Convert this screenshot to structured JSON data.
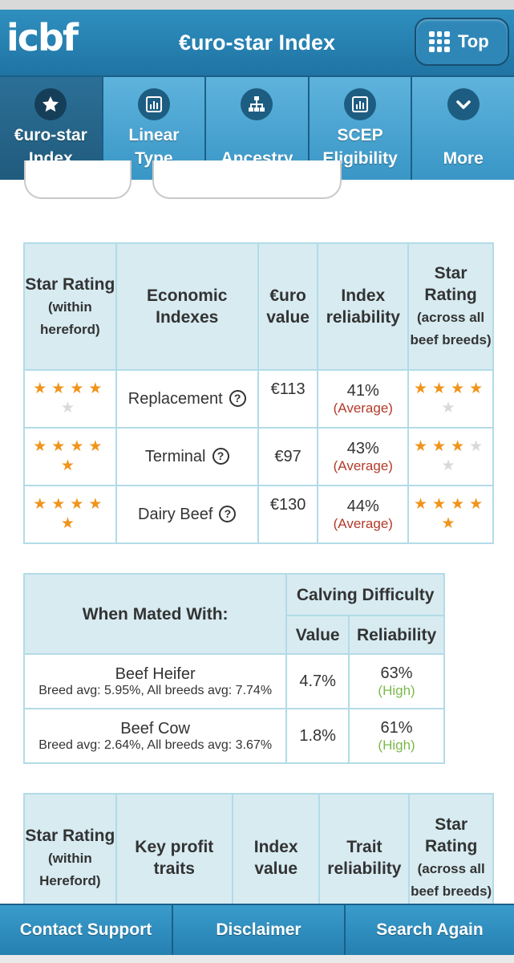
{
  "header": {
    "logo": "icbf",
    "title": "€uro-star Index",
    "top_label": "Top"
  },
  "nav": [
    {
      "label1": "€uro-star",
      "label2": "Index",
      "icon": "star-icon"
    },
    {
      "label1": "Linear",
      "label2": "Type",
      "icon": "bar-chart-icon"
    },
    {
      "label1": "",
      "label2": "Ancestry",
      "icon": "hierarchy-icon"
    },
    {
      "label1": "SCEP",
      "label2": "Eligibility",
      "icon": "bar-chart-icon"
    },
    {
      "label1": "",
      "label2": "More",
      "icon": "chevron-down-icon"
    }
  ],
  "table1": {
    "headers": {
      "star_title": "Star Rating",
      "star_within": "(within hereford)",
      "economic": "Economic Indexes",
      "euro": "€uro value",
      "reliability": "Index reliability",
      "star_across_title": "Star Rating",
      "star_across": "(across all beef breeds)"
    },
    "rows": [
      {
        "name": "Replacement",
        "value": "€113",
        "reliability": "41%",
        "rel_label": "(Average)",
        "within_stars": 4,
        "across_stars": 4
      },
      {
        "name": "Terminal",
        "value": "€97",
        "reliability": "43%",
        "rel_label": "(Average)",
        "within_stars": 5,
        "across_stars": 3
      },
      {
        "name": "Dairy Beef",
        "value": "€130",
        "reliability": "44%",
        "rel_label": "(Average)",
        "within_stars": 5,
        "across_stars": 5
      }
    ]
  },
  "table2": {
    "headers": {
      "mated": "When Mated With:",
      "calving": "Calving Difficulty",
      "value": "Value",
      "reliability": "Reliability"
    },
    "rows": [
      {
        "name": "Beef Heifer",
        "sub": "Breed avg: 5.95%, All breeds avg: 7.74%",
        "value": "4.7%",
        "reliability": "63%",
        "rel_label": "(High)"
      },
      {
        "name": "Beef Cow",
        "sub": "Breed avg: 2.64%, All breeds avg: 3.67%",
        "value": "1.8%",
        "reliability": "61%",
        "rel_label": "(High)"
      }
    ]
  },
  "table3": {
    "headers": {
      "star_title": "Star Rating",
      "star_within": "(within Hereford)",
      "traits": "Key profit traits",
      "index_value": "Index value",
      "trait_rel": "Trait reliability",
      "star_across_title": "Star Rating",
      "star_across": "(across all beef breeds)"
    }
  },
  "footer": {
    "contact": "Contact Support",
    "disclaimer": "Disclaimer",
    "search": "Search Again"
  },
  "colors": {
    "header": "#2f8fbf",
    "nav": "#4aa6d3",
    "table_header": "#d7ebf1",
    "star": "#f0941c",
    "average": "#b33a2a",
    "high": "#7db84b"
  }
}
